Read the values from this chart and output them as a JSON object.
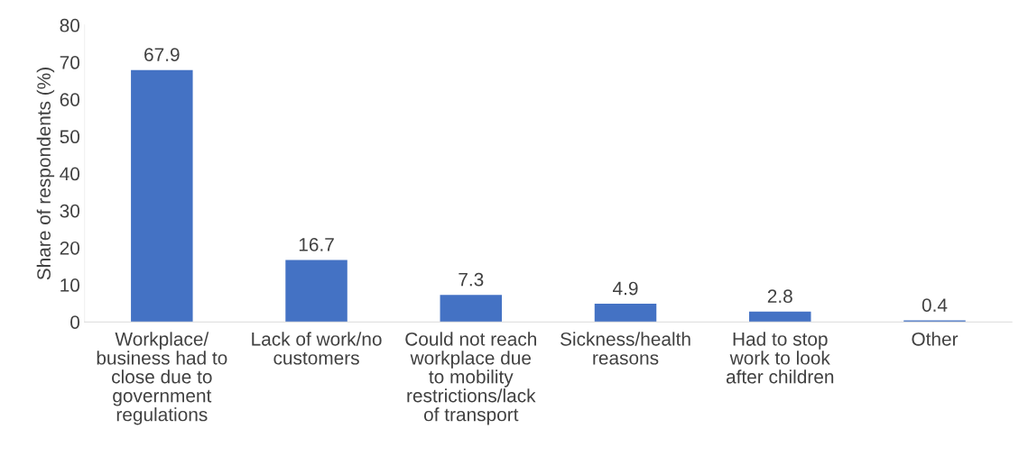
{
  "chart_data": {
    "type": "bar",
    "ylabel": "Share of respondents (%)",
    "categories": [
      "Workplace/\nbusiness had to\nclose due to\ngovernment\nregulations",
      "Lack of work/no\ncustomers",
      "Could not reach\nworkplace due\nto mobility\nrestrictions/lack\nof transport",
      "Sickness/health\nreasons",
      "Had to stop\nwork to look\nafter children",
      "Other"
    ],
    "values": [
      67.9,
      16.7,
      7.3,
      4.9,
      2.8,
      0.4
    ],
    "color": "#4472c4",
    "data_labels": true,
    "ylim": [
      0,
      80
    ],
    "yticks": [
      0,
      10,
      20,
      30,
      40,
      50,
      60,
      70,
      80
    ],
    "grid": false,
    "legend": false
  }
}
